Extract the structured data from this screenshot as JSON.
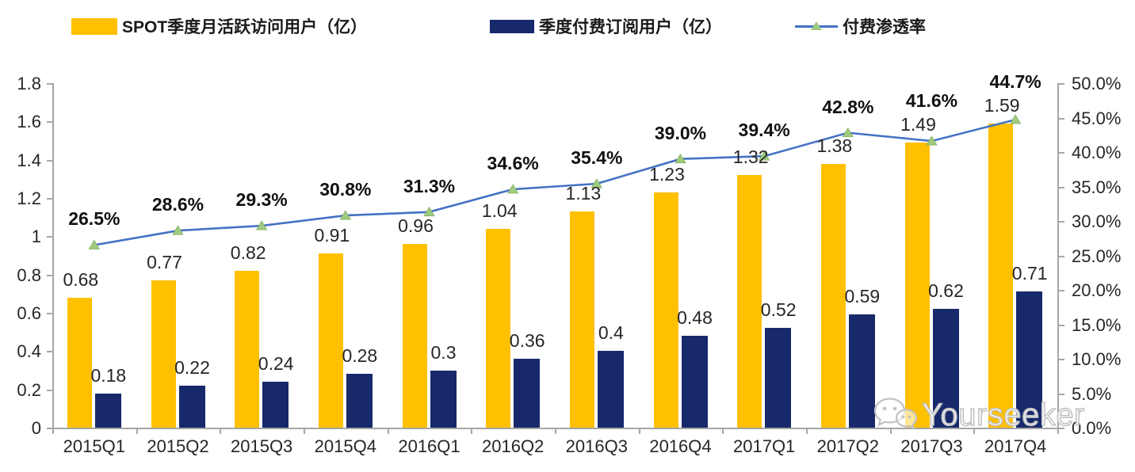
{
  "watermark": {
    "icon": "wechat-icon",
    "text": "Yourseeker"
  },
  "colors": {
    "mau_bar": "#FFC000",
    "subs_bar": "#17296B",
    "trend_line": "#4472C4",
    "trend_marker": "#9FCB80",
    "axis": "#A6A6A6",
    "label_text": "#262626"
  },
  "chart_data": {
    "type": "bar+line",
    "categories": [
      "2015Q1",
      "2015Q2",
      "2015Q3",
      "2015Q4",
      "2016Q1",
      "2016Q2",
      "2016Q3",
      "2016Q4",
      "2017Q1",
      "2017Q2",
      "2017Q3",
      "2017Q4"
    ],
    "series": [
      {
        "name": "SPOT季度月活跃访问用户（亿）",
        "type": "bar",
        "axis": "left",
        "color": "#FFC000",
        "values": [
          0.68,
          0.77,
          0.82,
          0.91,
          0.96,
          1.04,
          1.13,
          1.23,
          1.32,
          1.38,
          1.49,
          1.59
        ],
        "labels": [
          "0.68",
          "0.77",
          "0.82",
          "0.91",
          "0.96",
          "1.04",
          "1.13",
          "1.23",
          "1.32",
          "1.38",
          "1.49",
          "1.59"
        ]
      },
      {
        "name": "季度付费订阅用户（亿）",
        "type": "bar",
        "axis": "left",
        "color": "#17296B",
        "values": [
          0.18,
          0.22,
          0.24,
          0.28,
          0.3,
          0.36,
          0.4,
          0.48,
          0.52,
          0.59,
          0.62,
          0.71
        ],
        "labels": [
          "0.18",
          "0.22",
          "0.24",
          "0.28",
          "0.3",
          "0.36",
          "0.4",
          "0.48",
          "0.52",
          "0.59",
          "0.62",
          "0.71"
        ]
      },
      {
        "name": "付费渗透率",
        "type": "line",
        "axis": "right",
        "color": "#4472C4",
        "marker": "triangle",
        "marker_color": "#9FCB80",
        "values": [
          26.5,
          28.6,
          29.3,
          30.8,
          31.3,
          34.6,
          35.4,
          39.0,
          39.4,
          42.8,
          41.6,
          44.7
        ],
        "labels": [
          "26.5%",
          "28.6%",
          "29.3%",
          "30.8%",
          "31.3%",
          "34.6%",
          "35.4%",
          "39.0%",
          "39.4%",
          "42.8%",
          "41.6%",
          "44.7%"
        ]
      }
    ],
    "left_axis": {
      "min": 0,
      "max": 1.8,
      "step": 0.2,
      "tick_labels": [
        "0",
        "0.2",
        "0.4",
        "0.6",
        "0.8",
        "1",
        "1.2",
        "1.4",
        "1.6",
        "1.8"
      ]
    },
    "right_axis": {
      "min": 0,
      "max": 50,
      "step": 5,
      "tick_labels": [
        "0.0%",
        "5.0%",
        "10.0%",
        "15.0%",
        "20.0%",
        "25.0%",
        "30.0%",
        "35.0%",
        "40.0%",
        "45.0%",
        "50.0%"
      ]
    },
    "grid": false,
    "legend_position": "top"
  }
}
